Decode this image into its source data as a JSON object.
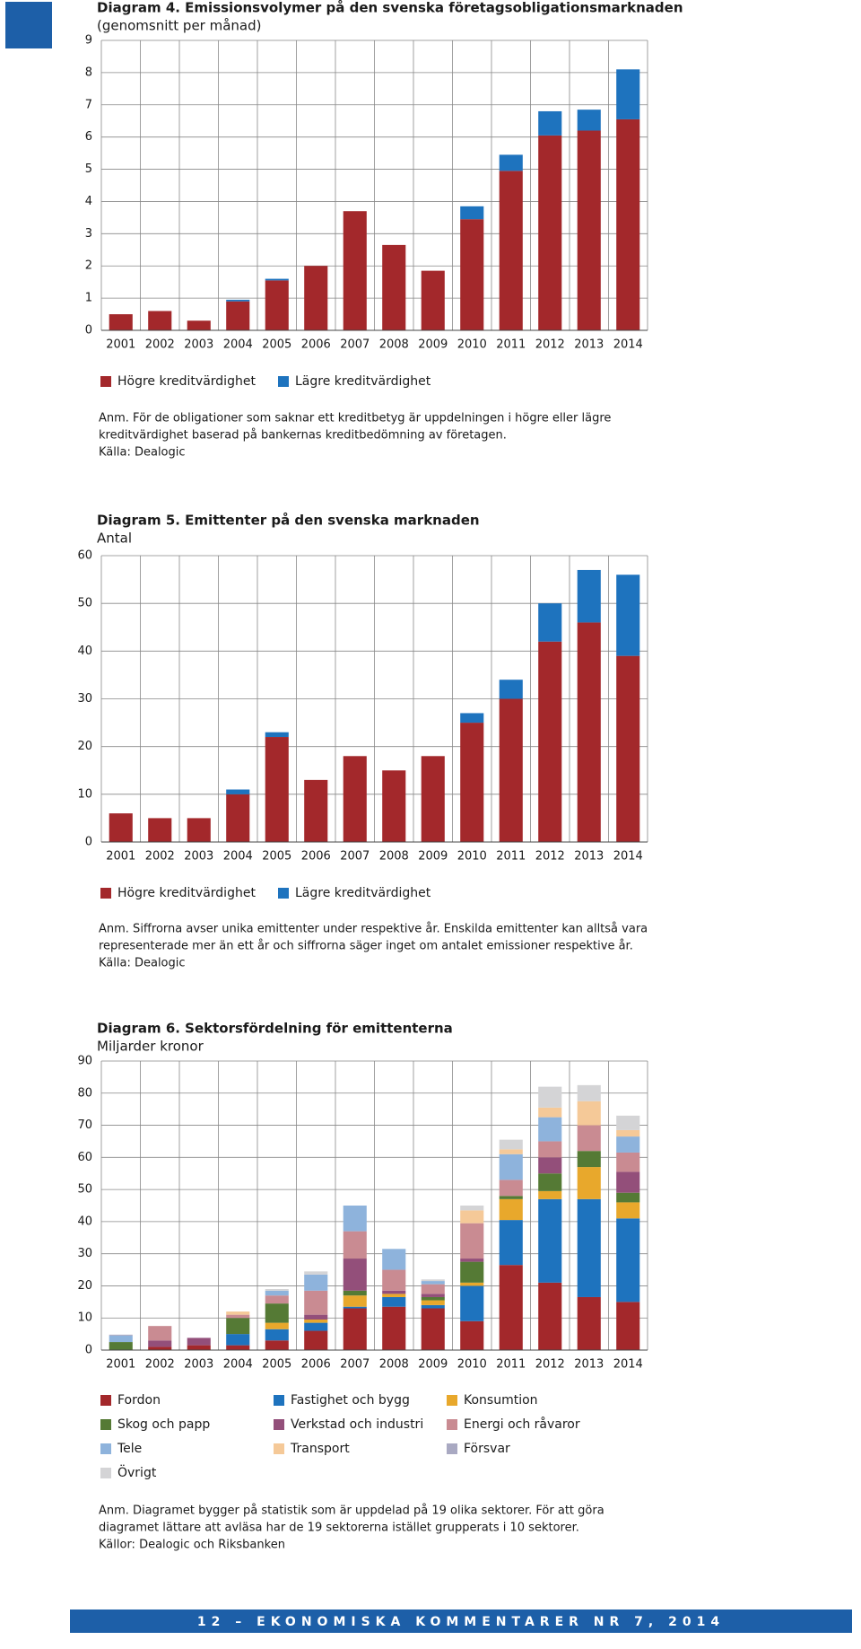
{
  "chart_data": [
    {
      "type": "bar",
      "stacked": true,
      "title": "Diagram 4. Emissionsvolymer på den svenska företagsobligationsmarknaden",
      "subtitle": "(genomsnitt per månad)",
      "categories": [
        "2001",
        "2002",
        "2003",
        "2004",
        "2005",
        "2006",
        "2007",
        "2008",
        "2009",
        "2010",
        "2011",
        "2012",
        "2013",
        "2014"
      ],
      "series": [
        {
          "name": "Högre kreditvärdighet",
          "color": "#a3282b",
          "values": [
            0.5,
            0.6,
            0.3,
            0.9,
            1.55,
            2.0,
            3.7,
            2.65,
            1.85,
            3.45,
            4.95,
            6.05,
            6.2,
            6.55
          ]
        },
        {
          "name": "Lägre kreditvärdighet",
          "color": "#1e73be",
          "values": [
            0,
            0,
            0,
            0.05,
            0.05,
            0,
            0,
            0,
            0,
            0.4,
            0.5,
            0.75,
            0.65,
            1.55
          ]
        }
      ],
      "ylim": [
        0,
        9
      ],
      "yticks": [
        0,
        1,
        2,
        3,
        4,
        5,
        6,
        7,
        8,
        9
      ],
      "grid": true,
      "note": [
        "Anm. För de obligationer som saknar ett kreditbetyg är uppdelningen i högre eller lägre",
        "kreditvärdighet baserad på bankernas kreditbedömning av företagen."
      ],
      "source": "Källa: Dealogic"
    },
    {
      "type": "bar",
      "stacked": true,
      "title": "Diagram 5. Emittenter på den svenska marknaden",
      "subtitle": "Antal",
      "categories": [
        "2001",
        "2002",
        "2003",
        "2004",
        "2005",
        "2006",
        "2007",
        "2008",
        "2009",
        "2010",
        "2011",
        "2012",
        "2013",
        "2014"
      ],
      "series": [
        {
          "name": "Högre kreditvärdighet",
          "color": "#a3282b",
          "values": [
            6,
            5,
            5,
            10,
            22,
            13,
            18,
            15,
            18,
            25,
            30,
            42,
            46,
            39
          ]
        },
        {
          "name": "Lägre kreditvärdighet",
          "color": "#1e73be",
          "values": [
            0,
            0,
            0,
            1,
            1,
            0,
            0,
            0,
            0,
            2,
            4,
            8,
            11,
            17
          ]
        }
      ],
      "ylim": [
        0,
        60
      ],
      "yticks": [
        0,
        10,
        20,
        30,
        40,
        50,
        60
      ],
      "grid": true,
      "note": [
        "Anm. Siffrorna avser unika emittenter under respektive år. Enskilda emittenter kan alltså vara",
        "representerade mer än ett år och siffrorna säger inget om antalet emissioner respektive år."
      ],
      "source": "Källa: Dealogic"
    },
    {
      "type": "bar",
      "stacked": true,
      "title": "Diagram 6. Sektorsfördelning för emittenterna",
      "subtitle": "Miljarder kronor",
      "categories": [
        "2001",
        "2002",
        "2003",
        "2004",
        "2005",
        "2006",
        "2007",
        "2008",
        "2009",
        "2010",
        "2011",
        "2012",
        "2013",
        "2014"
      ],
      "series": [
        {
          "name": "Fordon",
          "color": "#a3282b",
          "values": [
            0,
            1,
            1.5,
            1.5,
            3,
            6,
            13,
            13.5,
            13,
            9,
            26.5,
            21,
            16.5,
            15
          ]
        },
        {
          "name": "Fastighet och bygg",
          "color": "#1e73be",
          "values": [
            0,
            0,
            0,
            3.5,
            3.5,
            2.5,
            0.5,
            3,
            1,
            11,
            14,
            26,
            30.5,
            26
          ]
        },
        {
          "name": "Konsumtion",
          "color": "#e8a82c",
          "values": [
            0,
            0,
            0,
            0,
            2,
            1,
            3.5,
            1,
            1.5,
            1,
            6.5,
            2.5,
            10,
            5
          ]
        },
        {
          "name": "Skog och papp",
          "color": "#557a35",
          "values": [
            2.5,
            0,
            0,
            5,
            6,
            0,
            1.5,
            0,
            1,
            6.5,
            1,
            5.5,
            5,
            3
          ]
        },
        {
          "name": "Verkstad och industri",
          "color": "#934f7a",
          "values": [
            0,
            2,
            2.3,
            0,
            0,
            1.5,
            10,
            1,
            1,
            1,
            0,
            5,
            0,
            6.5
          ]
        },
        {
          "name": "Energi och råvaror",
          "color": "#c98b92",
          "values": [
            0,
            4.5,
            0,
            1,
            2.5,
            7.5,
            8.5,
            6.5,
            3,
            11,
            5,
            5,
            8,
            6
          ]
        },
        {
          "name": "Tele",
          "color": "#8eb3dc",
          "values": [
            2,
            0,
            0,
            0,
            1.5,
            5,
            8,
            6.5,
            1,
            0,
            8,
            7.5,
            0,
            5
          ]
        },
        {
          "name": "Transport",
          "color": "#f5c998",
          "values": [
            0,
            0,
            0,
            1,
            0,
            0,
            0,
            0,
            0,
            4,
            1.5,
            3,
            7.5,
            2
          ]
        },
        {
          "name": "Försvar",
          "color": "#a9a9c2",
          "values": [
            0.3,
            0,
            0,
            0,
            0,
            0,
            0,
            0,
            0,
            0,
            0,
            0,
            0,
            0
          ]
        },
        {
          "name": "Övrigt",
          "color": "#d4d4d6",
          "values": [
            0,
            0,
            0,
            0,
            0.5,
            1,
            0,
            0,
            0.5,
            1.5,
            3,
            6.5,
            5,
            4.5
          ]
        }
      ],
      "ylim": [
        0,
        90
      ],
      "yticks": [
        0,
        10,
        20,
        30,
        40,
        50,
        60,
        70,
        80,
        90
      ],
      "grid": true,
      "note": [
        "Anm. Diagramet bygger på statistik som är uppdelad på 19 olika sektorer. För att göra",
        "diagramet lättare att avläsa har de 19 sektorerna istället grupperats i 10 sektorer."
      ],
      "source": "Källor: Dealogic och Riksbanken"
    }
  ],
  "footer": "12 – EKONOMISKA KOMMENTARER NR 7, 2014"
}
